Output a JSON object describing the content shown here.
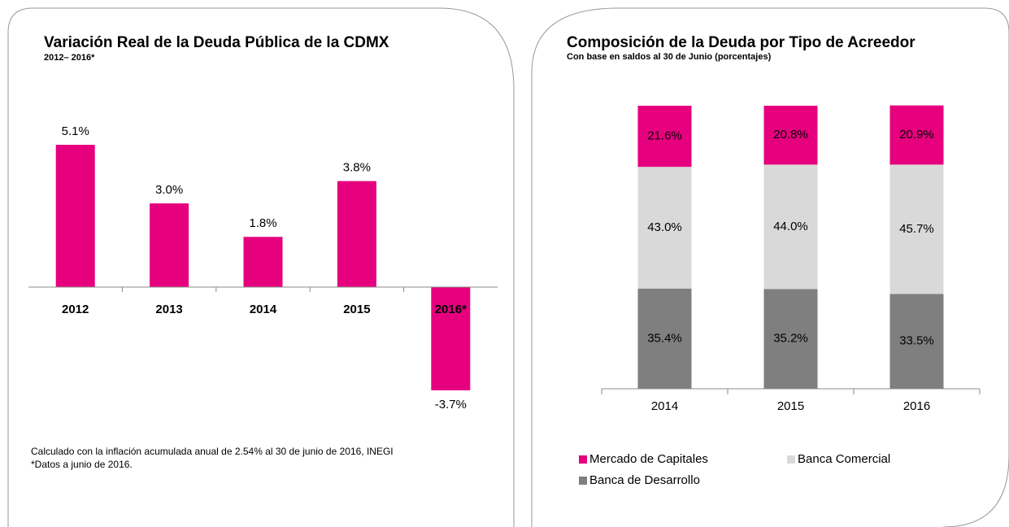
{
  "chart_data": [
    {
      "type": "bar",
      "title": "Variación Real de la Deuda Pública de la CDMX",
      "subtitle": "2012– 2016*",
      "categories": [
        "2012",
        "2013",
        "2014",
        "2015",
        "2016*"
      ],
      "values": [
        5.1,
        3.0,
        1.8,
        3.8,
        -3.7
      ],
      "value_labels": [
        "5.1%",
        "3.0%",
        "1.8%",
        "3.8%",
        "-3.7%"
      ],
      "color": "#e6007e",
      "notes": [
        "Calculado con la inflación acumulada anual de  2.54%  al 30  de  junio de 2016, INEGI",
        "*Datos a junio de 2016."
      ]
    },
    {
      "type": "stacked_bar",
      "title": "Composición de la Deuda por Tipo de Acreedor",
      "subtitle": "Con base en saldos al 30 de Junio (porcentajes)",
      "categories": [
        "2014",
        "2015",
        "2016"
      ],
      "series": [
        {
          "name": "Mercado de Capitales",
          "color": "#e6007e",
          "values": [
            21.6,
            20.8,
            20.9
          ],
          "value_labels": [
            "21.6%",
            "20.8%",
            "20.9%"
          ]
        },
        {
          "name": "Banca Comercial",
          "color": "#d9d9d9",
          "values": [
            43.0,
            44.0,
            45.7
          ],
          "value_labels": [
            "43.0%",
            "44.0%",
            "45.7%"
          ]
        },
        {
          "name": "Banca de Desarrollo",
          "color": "#7f7f7f",
          "values": [
            35.4,
            35.2,
            33.5
          ],
          "value_labels": [
            "35.4%",
            "35.2%",
            "33.5%"
          ]
        }
      ]
    }
  ]
}
